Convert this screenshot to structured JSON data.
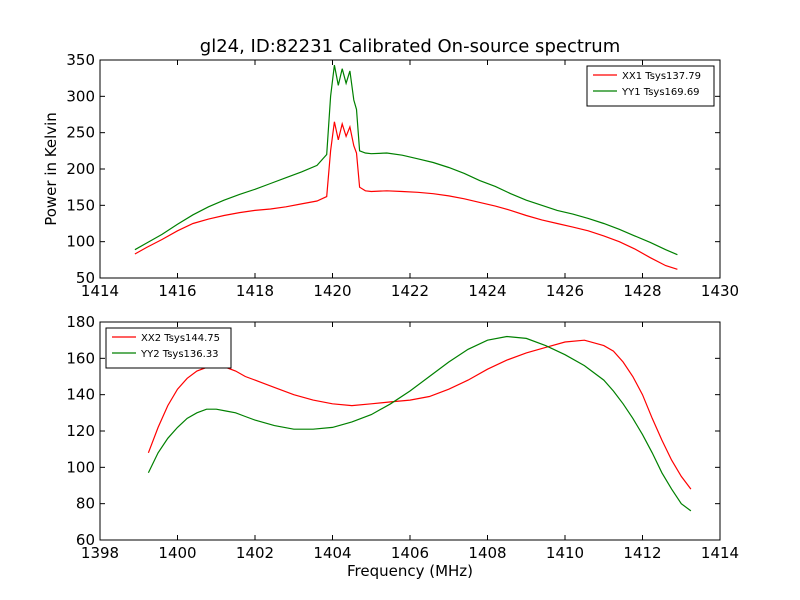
{
  "figure": {
    "title": "gl24, ID:82231 Calibrated On-source spectrum"
  },
  "chart_data": [
    {
      "type": "line",
      "title": "gl24, ID:82231 Calibrated On-source spectrum",
      "xlabel": "",
      "ylabel": "Power in Kelvin",
      "xlim": [
        1414,
        1430
      ],
      "ylim": [
        50,
        350
      ],
      "x_ticks": [
        1414,
        1416,
        1418,
        1420,
        1422,
        1424,
        1426,
        1428,
        1430
      ],
      "y_ticks": [
        50,
        100,
        150,
        200,
        250,
        300,
        350
      ],
      "legend": "top-right",
      "grid": false,
      "series": [
        {
          "name": "XX1 Tsys137.79",
          "color": "#ff0000",
          "x": [
            1414.9,
            1415.2,
            1415.6,
            1416.0,
            1416.4,
            1416.8,
            1417.2,
            1417.6,
            1418.0,
            1418.4,
            1418.8,
            1419.2,
            1419.6,
            1419.85,
            1419.95,
            1420.05,
            1420.15,
            1420.25,
            1420.35,
            1420.45,
            1420.55,
            1420.62,
            1420.7,
            1420.85,
            1421.0,
            1421.4,
            1421.8,
            1422.2,
            1422.6,
            1423.0,
            1423.4,
            1423.8,
            1424.2,
            1424.6,
            1425.0,
            1425.4,
            1425.8,
            1426.2,
            1426.6,
            1427.0,
            1427.4,
            1427.8,
            1428.2,
            1428.6,
            1428.9
          ],
          "y": [
            83,
            92,
            103,
            115,
            125,
            131,
            136,
            140,
            143,
            145,
            148,
            152,
            156,
            162,
            225,
            265,
            240,
            262,
            245,
            258,
            232,
            222,
            175,
            170,
            169,
            170,
            169,
            168,
            166,
            163,
            159,
            154,
            149,
            143,
            136,
            130,
            125,
            120,
            115,
            108,
            100,
            90,
            78,
            67,
            62
          ]
        },
        {
          "name": "YY1 Tsys169.69",
          "color": "#008000",
          "x": [
            1414.9,
            1415.2,
            1415.6,
            1416.0,
            1416.4,
            1416.8,
            1417.2,
            1417.6,
            1418.0,
            1418.4,
            1418.8,
            1419.2,
            1419.6,
            1419.85,
            1419.95,
            1420.05,
            1420.15,
            1420.25,
            1420.35,
            1420.45,
            1420.55,
            1420.62,
            1420.7,
            1420.85,
            1421.0,
            1421.4,
            1421.8,
            1422.2,
            1422.6,
            1423.0,
            1423.4,
            1423.8,
            1424.2,
            1424.6,
            1425.0,
            1425.4,
            1425.8,
            1426.2,
            1426.6,
            1427.0,
            1427.4,
            1427.8,
            1428.2,
            1428.6,
            1428.9
          ],
          "y": [
            89,
            98,
            110,
            124,
            137,
            148,
            157,
            165,
            172,
            180,
            188,
            196,
            205,
            220,
            300,
            343,
            315,
            338,
            318,
            335,
            295,
            282,
            225,
            222,
            221,
            222,
            219,
            214,
            209,
            202,
            194,
            184,
            176,
            166,
            157,
            150,
            143,
            138,
            132,
            125,
            117,
            108,
            99,
            89,
            82
          ]
        }
      ]
    },
    {
      "type": "line",
      "title": "",
      "xlabel": "Frequency (MHz)",
      "ylabel": "",
      "xlim": [
        1398,
        1414
      ],
      "ylim": [
        60,
        180
      ],
      "x_ticks": [
        1398,
        1400,
        1402,
        1404,
        1406,
        1408,
        1410,
        1412,
        1414
      ],
      "y_ticks": [
        60,
        80,
        100,
        120,
        140,
        160,
        180
      ],
      "legend": "top-left",
      "grid": false,
      "series": [
        {
          "name": "XX2 Tsys144.75",
          "color": "#ff0000",
          "x": [
            1399.25,
            1399.5,
            1399.75,
            1400.0,
            1400.25,
            1400.5,
            1400.75,
            1401.0,
            1401.25,
            1401.5,
            1401.75,
            1402.0,
            1402.5,
            1403.0,
            1403.5,
            1404.0,
            1404.5,
            1405.0,
            1405.5,
            1406.0,
            1406.5,
            1407.0,
            1407.5,
            1408.0,
            1408.5,
            1409.0,
            1409.5,
            1410.0,
            1410.5,
            1411.0,
            1411.25,
            1411.5,
            1411.75,
            1412.0,
            1412.25,
            1412.5,
            1412.75,
            1413.0,
            1413.25
          ],
          "y": [
            108,
            122,
            134,
            143,
            149,
            153,
            155,
            155,
            155,
            153,
            150,
            148,
            144,
            140,
            137,
            135,
            134,
            135,
            136,
            137,
            139,
            143,
            148,
            154,
            159,
            163,
            166,
            169,
            170,
            167,
            164,
            158,
            150,
            140,
            127,
            115,
            104,
            95,
            88
          ]
        },
        {
          "name": "YY2 Tsys136.33",
          "color": "#008000",
          "x": [
            1399.25,
            1399.5,
            1399.75,
            1400.0,
            1400.25,
            1400.5,
            1400.75,
            1401.0,
            1401.25,
            1401.5,
            1401.75,
            1402.0,
            1402.5,
            1403.0,
            1403.5,
            1404.0,
            1404.5,
            1405.0,
            1405.5,
            1406.0,
            1406.5,
            1407.0,
            1407.5,
            1408.0,
            1408.5,
            1409.0,
            1409.5,
            1410.0,
            1410.5,
            1411.0,
            1411.25,
            1411.5,
            1411.75,
            1412.0,
            1412.25,
            1412.5,
            1412.75,
            1413.0,
            1413.25
          ],
          "y": [
            97,
            108,
            116,
            122,
            127,
            130,
            132,
            132,
            131,
            130,
            128,
            126,
            123,
            121,
            121,
            122,
            125,
            129,
            135,
            142,
            150,
            158,
            165,
            170,
            172,
            171,
            167,
            162,
            156,
            148,
            142,
            135,
            127,
            118,
            108,
            97,
            88,
            80,
            76
          ]
        }
      ]
    }
  ]
}
